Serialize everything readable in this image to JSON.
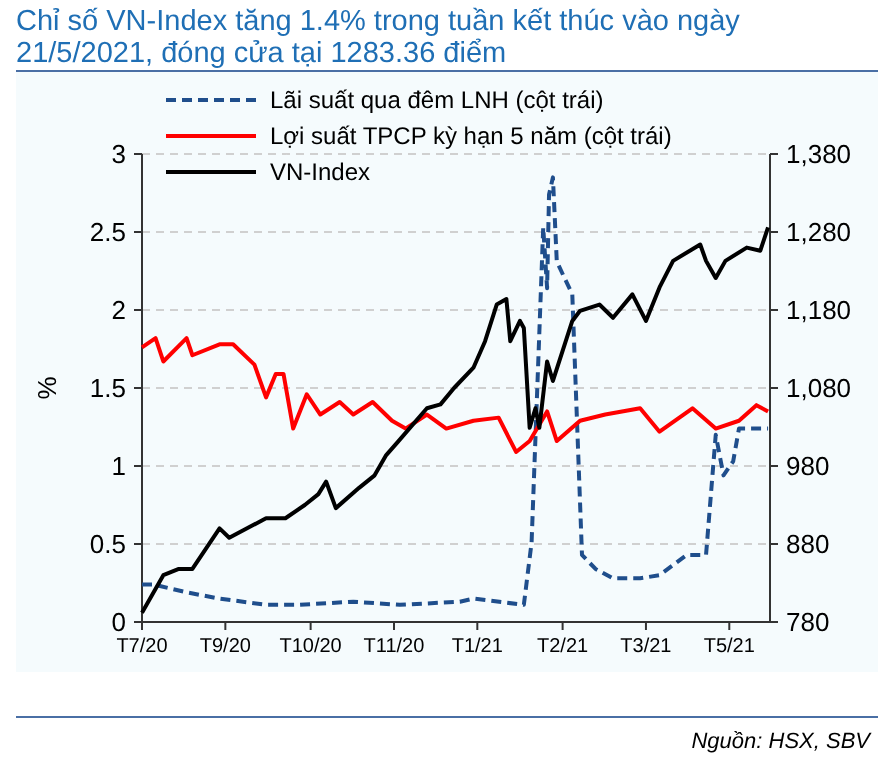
{
  "chart_data": {
    "type": "line",
    "title": "Chỉ số VN-Index tăng 1.4% trong tuần kết thúc vào ngày 21/5/2021, đóng cửa tại 1283.36 điểm",
    "ylabel": "%",
    "annotations": [
      "Nguồn: HSX, SBV"
    ],
    "xlim": [
      "2020-07-01",
      "2021-05-21"
    ],
    "xticks": [
      {
        "value": "2020-07-01",
        "label": "T7/20"
      },
      {
        "value": "2020-08-13",
        "label": "T9/20"
      },
      {
        "value": "2020-09-26",
        "label": "T10/20"
      },
      {
        "value": "2020-11-08",
        "label": "T11/20"
      },
      {
        "value": "2020-12-21",
        "label": "T1/21"
      },
      {
        "value": "2021-02-03",
        "label": "T2/21"
      },
      {
        "value": "2021-03-18",
        "label": "T3/21"
      },
      {
        "value": "2021-04-30",
        "label": "T5/21"
      }
    ],
    "ylim": [
      0,
      3
    ],
    "yticks": [
      0,
      0.5,
      1,
      1.5,
      2,
      2.5,
      3
    ],
    "y2lim": [
      780,
      1380
    ],
    "y2ticks": [
      {
        "value": 780,
        "label": "780"
      },
      {
        "value": 880,
        "label": "880"
      },
      {
        "value": 980,
        "label": "980"
      },
      {
        "value": 1080,
        "label": "1,080"
      },
      {
        "value": 1180,
        "label": "1,180"
      },
      {
        "value": 1280,
        "label": "1,280"
      },
      {
        "value": 1380,
        "label": "1,380"
      }
    ],
    "grid": "y",
    "legend": "top left",
    "series": [
      {
        "name": "Lãi suất qua đêm LNH  (cột trái)",
        "color": "#1f4e8c",
        "line_style": "dashed",
        "x": [
          "2020-07-01",
          "2020-07-07",
          "2020-07-24",
          "2020-08-10",
          "2020-09-03",
          "2020-09-20",
          "2020-10-18",
          "2020-11-11",
          "2020-12-12",
          "2020-12-19",
          "2021-01-14",
          "2021-01-18",
          "2021-01-24",
          "2021-01-26",
          "2021-01-27",
          "2021-01-29",
          "2021-01-31",
          "2021-02-08",
          "2021-02-13",
          "2021-02-20",
          "2021-03-01",
          "2021-03-15",
          "2021-03-25",
          "2021-04-08",
          "2021-04-18",
          "2021-04-23",
          "2021-04-27",
          "2021-05-02",
          "2021-05-05",
          "2021-05-12",
          "2021-05-20"
        ],
        "values": [
          0.24,
          0.24,
          0.19,
          0.15,
          0.11,
          0.11,
          0.13,
          0.11,
          0.13,
          0.15,
          0.11,
          0.51,
          2.53,
          2.14,
          2.74,
          2.85,
          2.31,
          2.1,
          0.43,
          0.34,
          0.28,
          0.28,
          0.3,
          0.43,
          0.43,
          1.2,
          0.94,
          1.03,
          1.24,
          1.24,
          1.24
        ]
      },
      {
        "name": "Lợi suất TPCP kỳ hạn 5 năm (cột trái)",
        "color": "#ff0000",
        "line_style": "solid",
        "x": [
          "2020-07-01",
          "2020-07-08",
          "2020-07-12",
          "2020-07-24",
          "2020-07-27",
          "2020-08-10",
          "2020-08-17",
          "2020-08-28",
          "2020-09-03",
          "2020-09-08",
          "2020-09-12",
          "2020-09-17",
          "2020-09-24",
          "2020-10-01",
          "2020-10-11",
          "2020-10-18",
          "2020-10-28",
          "2020-11-07",
          "2020-11-14",
          "2020-11-25",
          "2020-12-05",
          "2020-12-19",
          "2021-01-01",
          "2021-01-10",
          "2021-01-17",
          "2021-01-26",
          "2021-01-31",
          "2021-02-12",
          "2021-02-25",
          "2021-03-15",
          "2021-03-25",
          "2021-04-11",
          "2021-04-23",
          "2021-05-05",
          "2021-05-14",
          "2021-05-20"
        ],
        "values": [
          1.76,
          1.82,
          1.67,
          1.82,
          1.71,
          1.78,
          1.78,
          1.65,
          1.44,
          1.59,
          1.59,
          1.24,
          1.46,
          1.33,
          1.41,
          1.33,
          1.41,
          1.29,
          1.24,
          1.33,
          1.24,
          1.29,
          1.31,
          1.09,
          1.16,
          1.35,
          1.16,
          1.29,
          1.33,
          1.37,
          1.22,
          1.37,
          1.24,
          1.29,
          1.39,
          1.35
        ]
      },
      {
        "name": "VN-Index",
        "color": "#000000",
        "line_style": "solid",
        "axis": "y2",
        "x": [
          "2020-07-01",
          "2020-07-12",
          "2020-07-20",
          "2020-07-27",
          "2020-08-10",
          "2020-08-15",
          "2020-09-03",
          "2020-09-13",
          "2020-09-23",
          "2020-09-30",
          "2020-10-04",
          "2020-10-09",
          "2020-10-21",
          "2020-10-29",
          "2020-11-04",
          "2020-11-10",
          "2020-11-25",
          "2020-12-02",
          "2020-12-09",
          "2020-12-19",
          "2020-12-25",
          "2020-12-31",
          "2021-01-05",
          "2021-01-07",
          "2021-01-12",
          "2021-01-14",
          "2021-01-17",
          "2021-01-20",
          "2021-01-22",
          "2021-01-26",
          "2021-01-29",
          "2021-02-08",
          "2021-02-12",
          "2021-02-22",
          "2021-03-01",
          "2021-03-11",
          "2021-03-18",
          "2021-03-25",
          "2021-04-01",
          "2021-04-15",
          "2021-04-18",
          "2021-04-23",
          "2021-04-28",
          "2021-05-09",
          "2021-05-16",
          "2021-05-20"
        ],
        "values": [
          792,
          840,
          848,
          848,
          900,
          888,
          913,
          913,
          930,
          944,
          960,
          926,
          952,
          968,
          994,
          1011,
          1054,
          1059,
          1080,
          1106,
          1140,
          1187,
          1194,
          1140,
          1166,
          1157,
          1029,
          1054,
          1029,
          1114,
          1089,
          1166,
          1179,
          1187,
          1170,
          1200,
          1166,
          1209,
          1243,
          1264,
          1243,
          1221,
          1243,
          1260,
          1256,
          1286
        ]
      }
    ]
  }
}
